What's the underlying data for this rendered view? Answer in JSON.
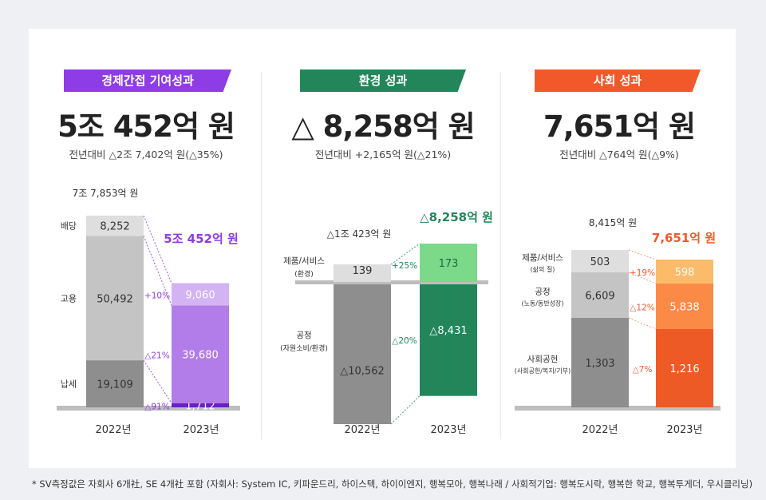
{
  "footnote": "* SV측정값은 자회사 6개社, SE 4개社 포함 (자회사: System IC, 키파운드리, 하이스텍, 하이이엔지, 행복모아, 행복나래 / 사회적기업: 행복도시락, 행복한 학교, 행복투게더, 우시클리닝)",
  "colors": {
    "economic": "#8e3ce6",
    "environment": "#23865a",
    "social": "#f2592a"
  },
  "chart_data": [
    {
      "type": "bar",
      "title": "경제간접 기여성과",
      "headline": "5조 452억 원",
      "subtitle": "전년대비 △2조 7,402억 원(△35%)",
      "categories": [
        "2022년",
        "2023년"
      ],
      "total_labels": [
        "7조 7,853억 원",
        "5조 452억 원"
      ],
      "totals": [
        77853,
        50452
      ],
      "series": [
        {
          "name": "납세",
          "values": [
            19109,
            1712
          ],
          "label_2022": "19,109",
          "label_2023": "1,712",
          "change": "△91%"
        },
        {
          "name": "고용",
          "values": [
            50492,
            39680
          ],
          "label_2022": "50,492",
          "label_2023": "39,680",
          "change": "△21%"
        },
        {
          "name": "배당",
          "values": [
            8252,
            9060
          ],
          "label_2022": "8,252",
          "label_2023": "9,060",
          "change": "+10%"
        }
      ]
    },
    {
      "type": "bar",
      "title": "환경 성과",
      "headline": "△ 8,258억 원",
      "subtitle": "전년대비 +2,165억 원(△21%)",
      "categories": [
        "2022년",
        "2023년"
      ],
      "total_labels": [
        "△1조 423억 원",
        "△8,258억 원"
      ],
      "totals": [
        -10423,
        -8258
      ],
      "series": [
        {
          "name": "제품/서비스",
          "name_sub": "(환경)",
          "values": [
            139,
            173
          ],
          "label_2022": "139",
          "label_2023": "173",
          "change": "+25%"
        },
        {
          "name": "공정",
          "name_sub": "(자원소비/환경)",
          "values": [
            -10562,
            -8431
          ],
          "label_2022": "△10,562",
          "label_2023": "△8,431",
          "change": "△20%"
        }
      ]
    },
    {
      "type": "bar",
      "title": "사회 성과",
      "headline": "7,651억 원",
      "subtitle": "전년대비 △764억 원(△9%)",
      "categories": [
        "2022년",
        "2023년"
      ],
      "total_labels": [
        "8,415억 원",
        "7,651억 원"
      ],
      "totals": [
        8415,
        7651
      ],
      "series": [
        {
          "name": "사회공헌",
          "name_sub": "(사회공헌/복지/기부)",
          "values": [
            1303,
            1216
          ],
          "label_2022": "1,303",
          "label_2023": "1,216",
          "change": "△7%"
        },
        {
          "name": "공정",
          "name_sub": "(노동/동반성장)",
          "values": [
            6609,
            5838
          ],
          "label_2022": "6,609",
          "label_2023": "5,838",
          "change": "△12%"
        },
        {
          "name": "제품/서비스",
          "name_sub": "(삶의 질)",
          "values": [
            503,
            598
          ],
          "label_2022": "503",
          "label_2023": "598",
          "change": "+19%"
        }
      ]
    }
  ]
}
